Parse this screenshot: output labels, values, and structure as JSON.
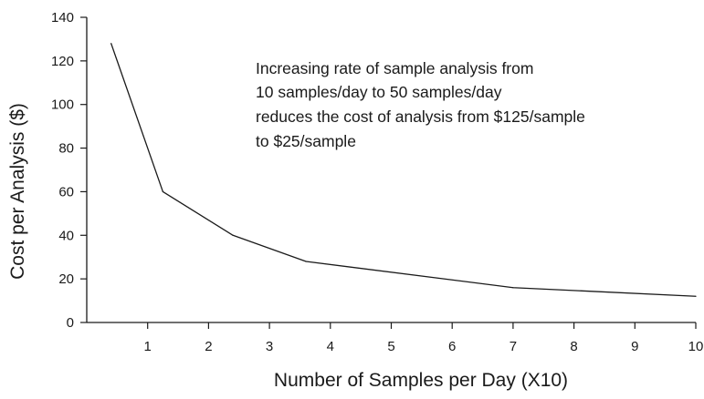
{
  "chart_data": {
    "type": "line",
    "title": "",
    "xlabel": "Number of Samples per Day (X10)",
    "ylabel": "Cost per Analysis ($)",
    "xlim": [
      0,
      10
    ],
    "ylim": [
      0,
      140
    ],
    "x_ticks": [
      "1",
      "2",
      "3",
      "4",
      "5",
      "6",
      "7",
      "8",
      "9",
      "10"
    ],
    "y_ticks": [
      "0",
      "20",
      "40",
      "60",
      "80",
      "100",
      "120",
      "140"
    ],
    "grid": false,
    "legend": "none",
    "line_color": "#1a1a1a",
    "series": [
      {
        "x": [
          0.4,
          1.25,
          2.4,
          3.6,
          7.0,
          10.0
        ],
        "y": [
          128,
          60,
          40,
          28,
          16,
          12
        ]
      }
    ],
    "annotation": [
      "Increasing rate of sample analysis from",
      "10 samples/day to 50 samples/day",
      "reduces the cost of analysis from $125/sample",
      "to $25/sample"
    ]
  }
}
